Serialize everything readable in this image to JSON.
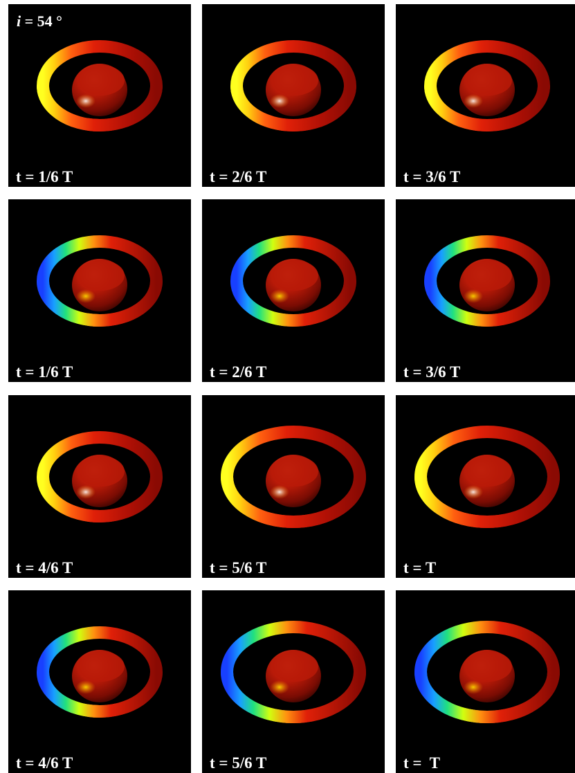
{
  "inclination": {
    "symbol": "i",
    "value_text": " = 54 °"
  },
  "colors": {
    "background": "#000000",
    "page": "#ffffff",
    "label": "#ffffff"
  },
  "panels": [
    {
      "label": "t = 1/6 T",
      "colormap": "heat",
      "ring": "mid"
    },
    {
      "label": "t = 2/6 T",
      "colormap": "heat",
      "ring": "mid"
    },
    {
      "label": "t = 3/6 T",
      "colormap": "heat",
      "ring": "mid"
    },
    {
      "label": "t = 1/6 T",
      "colormap": "rainbow",
      "ring": "mid"
    },
    {
      "label": "t = 2/6 T",
      "colormap": "rainbow",
      "ring": "mid"
    },
    {
      "label": "t = 3/6 T",
      "colormap": "rainbow",
      "ring": "mid"
    },
    {
      "label": "t = 4/6 T",
      "colormap": "heat",
      "ring": "mid"
    },
    {
      "label": "t = 5/6 T",
      "colormap": "heat",
      "ring": "large"
    },
    {
      "label": "t = T",
      "colormap": "heat",
      "ring": "large"
    },
    {
      "label": "t = 4/6 T",
      "colormap": "rainbow",
      "ring": "mid"
    },
    {
      "label": "t = 5/6 T",
      "colormap": "rainbow",
      "ring": "large"
    },
    {
      "label": "t =  T",
      "colormap": "rainbow",
      "ring": "large"
    }
  ]
}
